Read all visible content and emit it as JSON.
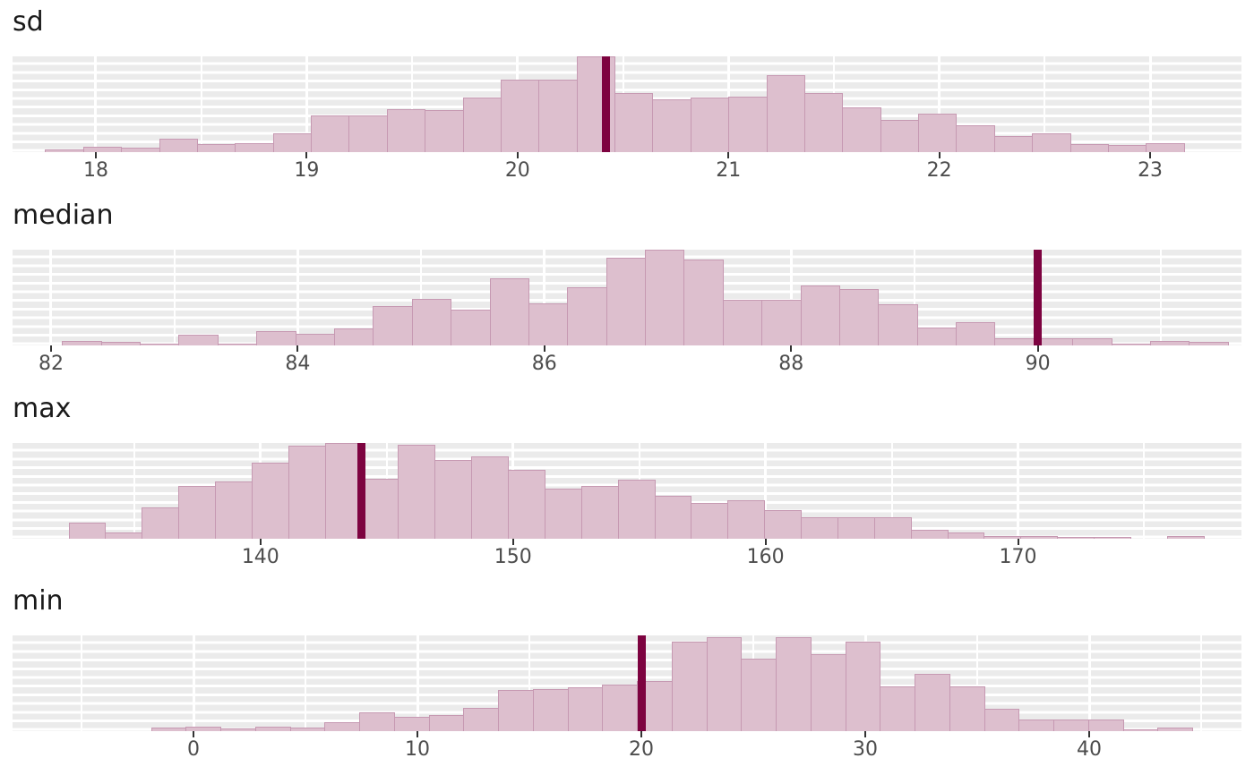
{
  "style": {
    "page_bg": "#ffffff",
    "panel_bg": "#ebebeb",
    "grid_line": "#ffffff",
    "bar_fill": "#ddbfce",
    "bar_border": "#c699b2",
    "stat_line_color": "#7d0340",
    "axis_text_color": "#4d4d4d",
    "tick_mark_color": "#333333",
    "title_color": "#1a1a1a"
  },
  "chart_data": [
    {
      "type": "bar",
      "subtype": "histogram",
      "title": "sd",
      "stat_line_x": 20.42,
      "xlim": [
        17.605,
        23.433
      ],
      "tick_values": [
        18,
        19,
        20,
        21,
        22,
        23
      ],
      "tick_labels": [
        "18",
        "19",
        "20",
        "21",
        "22",
        "23"
      ],
      "minor_tick_values": [
        18.5,
        19.5,
        20.5,
        21.5,
        22.5
      ],
      "bin_start": 17.76,
      "bin_width": 0.18,
      "bar_heights_rel": [
        0.03,
        0.055,
        0.05,
        0.14,
        0.08,
        0.09,
        0.2,
        0.38,
        0.38,
        0.45,
        0.44,
        0.57,
        0.76,
        0.76,
        1.0,
        0.62,
        0.55,
        0.57,
        0.58,
        0.8,
        0.62,
        0.47,
        0.34,
        0.4,
        0.28,
        0.17,
        0.2,
        0.085,
        0.075,
        0.09
      ],
      "grid": true,
      "legend": false
    },
    {
      "type": "bar",
      "subtype": "histogram",
      "title": "median",
      "stat_line_x": 90.0,
      "xlim": [
        81.688,
        91.651
      ],
      "tick_values": [
        82,
        84,
        86,
        88,
        90
      ],
      "tick_labels": [
        "82",
        "84",
        "86",
        "88",
        "90"
      ],
      "minor_tick_values": [
        83,
        85,
        87,
        89,
        91
      ],
      "bin_start": 82.09,
      "bin_width": 0.315,
      "bar_heights_rel": [
        0.048,
        0.035,
        0.01,
        0.11,
        0.01,
        0.15,
        0.12,
        0.175,
        0.41,
        0.49,
        0.37,
        0.7,
        0.44,
        0.61,
        0.92,
        1.0,
        0.9,
        0.475,
        0.475,
        0.625,
        0.585,
        0.43,
        0.19,
        0.245,
        0.075,
        0.075,
        0.075,
        0.01,
        0.05,
        0.04
      ],
      "grid": true,
      "legend": false
    },
    {
      "type": "bar",
      "subtype": "histogram",
      "title": "max",
      "stat_line_x": 144.0,
      "xlim": [
        130.18,
        178.85
      ],
      "tick_values": [
        140,
        150,
        160,
        170
      ],
      "tick_labels": [
        "140",
        "150",
        "160",
        "170"
      ],
      "minor_tick_values": [
        135,
        145,
        155,
        165,
        175
      ],
      "bin_start": 132.4,
      "bin_width": 1.45,
      "bar_heights_rel": [
        0.17,
        0.07,
        0.33,
        0.55,
        0.6,
        0.79,
        0.97,
        1.0,
        0.63,
        0.98,
        0.82,
        0.86,
        0.72,
        0.52,
        0.55,
        0.62,
        0.45,
        0.37,
        0.4,
        0.3,
        0.22,
        0.22,
        0.22,
        0.09,
        0.07,
        0.025,
        0.025,
        0.02,
        0.005,
        0,
        0.03
      ],
      "grid": true,
      "legend": false
    },
    {
      "type": "bar",
      "subtype": "histogram",
      "title": "min",
      "stat_line_x": 20.0,
      "xlim": [
        -8.08,
        46.8
      ],
      "tick_values": [
        0,
        10,
        20,
        30,
        40
      ],
      "tick_labels": [
        "0",
        "10",
        "20",
        "30",
        "40"
      ],
      "minor_tick_values": [
        -5,
        5,
        15,
        25,
        35,
        45
      ],
      "bin_start": -1.9,
      "bin_width": 1.55,
      "bar_heights_rel": [
        0.04,
        0.05,
        0.03,
        0.05,
        0.04,
        0.09,
        0.2,
        0.15,
        0.17,
        0.24,
        0.43,
        0.44,
        0.46,
        0.49,
        0.52,
        0.93,
        0.98,
        0.76,
        0.98,
        0.8,
        0.93,
        0.47,
        0.6,
        0.47,
        0.23,
        0.12,
        0.12,
        0.12,
        0.01,
        0.04
      ],
      "grid": true,
      "legend": false
    }
  ]
}
